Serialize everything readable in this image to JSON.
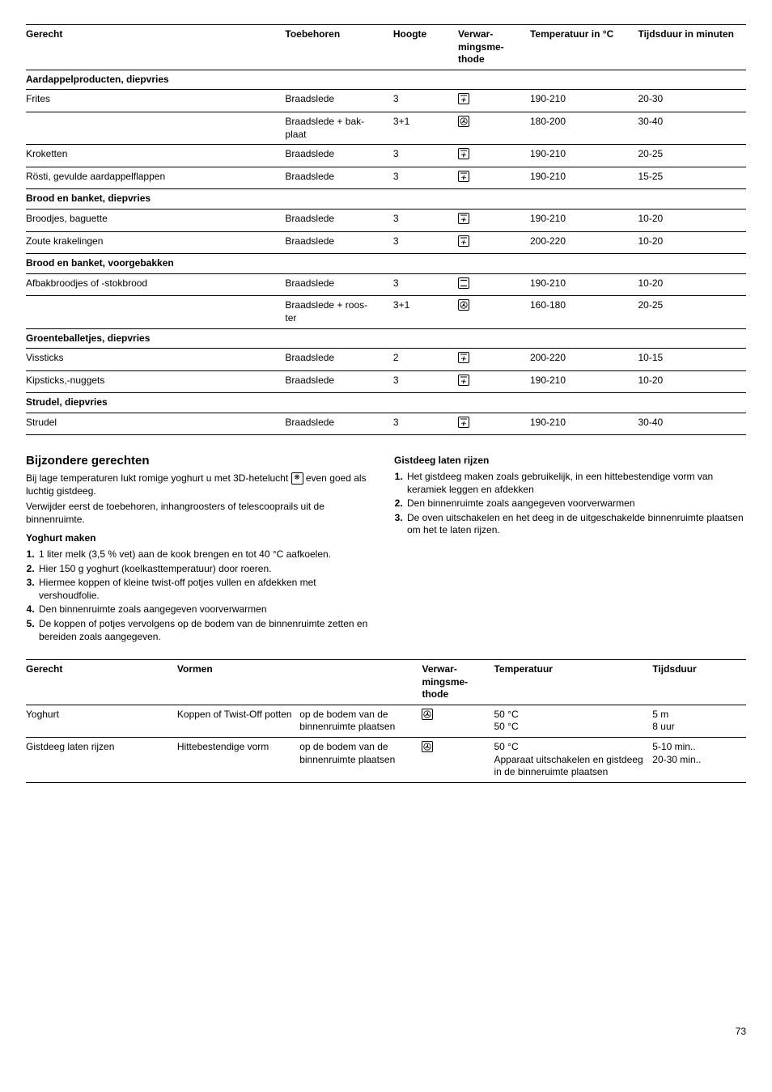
{
  "table1": {
    "headers": [
      "Gerecht",
      "Toebehoren",
      "Hoogte",
      "Verwar-\nmingsme-\nthode",
      "Temperatuur in °C",
      "Tijdsduur in minuten"
    ],
    "sections": [
      {
        "title": "Aardappelproducten, diepvries",
        "rows": [
          {
            "dish": "Frites",
            "acc": "Braadslede",
            "height": "3",
            "icon": "fan-top",
            "temp": "190-210",
            "time": "20-30"
          },
          {
            "dish": "",
            "acc": "Braadslede + bak-\nplaat",
            "height": "3+1",
            "icon": "fan",
            "temp": "180-200",
            "time": "30-40"
          },
          {
            "dish": "Kroketten",
            "acc": "Braadslede",
            "height": "3",
            "icon": "fan-top",
            "temp": "190-210",
            "time": "20-25"
          },
          {
            "dish": "Rösti, gevulde aardappelflappen",
            "acc": "Braadslede",
            "height": "3",
            "icon": "fan-top",
            "temp": "190-210",
            "time": "15-25"
          }
        ]
      },
      {
        "title": "Brood en banket, diepvries",
        "rows": [
          {
            "dish": "Broodjes, baguette",
            "acc": "Braadslede",
            "height": "3",
            "icon": "fan-top",
            "temp": "190-210",
            "time": "10-20"
          },
          {
            "dish": "Zoute krakelingen",
            "acc": "Braadslede",
            "height": "3",
            "icon": "fan-top",
            "temp": "200-220",
            "time": "10-20"
          }
        ]
      },
      {
        "title": "Brood en banket, voorgebakken",
        "rows": [
          {
            "dish": "Afbakbroodjes of -stokbrood",
            "acc": "Braadslede",
            "height": "3",
            "icon": "topbottom",
            "temp": "190-210",
            "time": "10-20"
          },
          {
            "dish": "",
            "acc": "Braadslede + roos-\nter",
            "height": "3+1",
            "icon": "fan",
            "temp": "160-180",
            "time": "20-25"
          }
        ]
      },
      {
        "title": "Groenteballetjes, diepvries",
        "rows": [
          {
            "dish": "Vissticks",
            "acc": "Braadslede",
            "height": "2",
            "icon": "fan-top",
            "temp": "200-220",
            "time": "10-15"
          },
          {
            "dish": "Kipsticks,-nuggets",
            "acc": "Braadslede",
            "height": "3",
            "icon": "fan-top",
            "temp": "190-210",
            "time": "10-20"
          }
        ]
      },
      {
        "title": "Strudel, diepvries",
        "rows": [
          {
            "dish": "Strudel",
            "acc": "Braadslede",
            "height": "3",
            "icon": "fan-top",
            "temp": "190-210",
            "time": "30-40"
          }
        ]
      }
    ]
  },
  "special": {
    "title": "Bijzondere gerechten",
    "intro1": "Bij lage temperaturen lukt romige yoghurt u met 3D-hetelucht ",
    "intro1b": " even goed als luchtig gistdeeg.",
    "intro2": "Verwijder eerst de toebehoren, inhangroosters of telescooprails uit de binnenruimte.",
    "yoghurtTitle": "Yoghurt maken",
    "yoghurtSteps": [
      "1 liter melk (3,5 % vet) aan de kook brengen en tot 40 °C aafkoelen.",
      "Hier 150 g yoghurt (koelkasttemperatuur) door roeren.",
      "Hiermee koppen of kleine twist-off potjes vullen en afdekken met vershoudfolie.",
      "Den binnenruimte zoals aangegeven voorverwarmen",
      "De koppen of potjes vervolgens op de bodem van de binnenruimte zetten en bereiden zoals aangegeven."
    ],
    "gistTitle": "Gistdeeg laten rijzen",
    "gistSteps": [
      "Het gistdeeg maken zoals gebruikelijk, in een hittebestendige vorm van keramiek leggen en afdekken",
      "Den binnenruimte zoals aangegeven voorverwarmen",
      "De oven uitschakelen en het deeg in de uitgeschakelde binnenruimte plaatsen om het te laten rijzen."
    ]
  },
  "table2": {
    "headers": [
      "Gerecht",
      "Vormen",
      "",
      "Verwar-\nmingsme-\nthode",
      "Temperatuur",
      "Tijdsduur"
    ],
    "rows": [
      {
        "dish": "Yoghurt",
        "form": "Koppen of Twist-Off potten",
        "pos": "op de bodem van de binnenruimte plaatsen",
        "icon": "fan",
        "tempA": "50 °C",
        "timeA": "5 m",
        "tempB": "50 °C",
        "timeB": "8 uur"
      },
      {
        "dish": "Gistdeeg laten rijzen",
        "form": "Hittebestendige vorm",
        "pos": "op de bodem van de binnenruimte plaatsen",
        "icon": "fan",
        "tempA": "50 °C",
        "timeA": "5-10 min..",
        "tempB": "Apparaat uitschakelen en gistdeeg in de binneruimte plaatsen",
        "timeB": "20-30 min.."
      }
    ]
  },
  "pageNumber": "73",
  "icons": {
    "fan-top": "❋",
    "fan": "❋",
    "topbottom": "—"
  }
}
